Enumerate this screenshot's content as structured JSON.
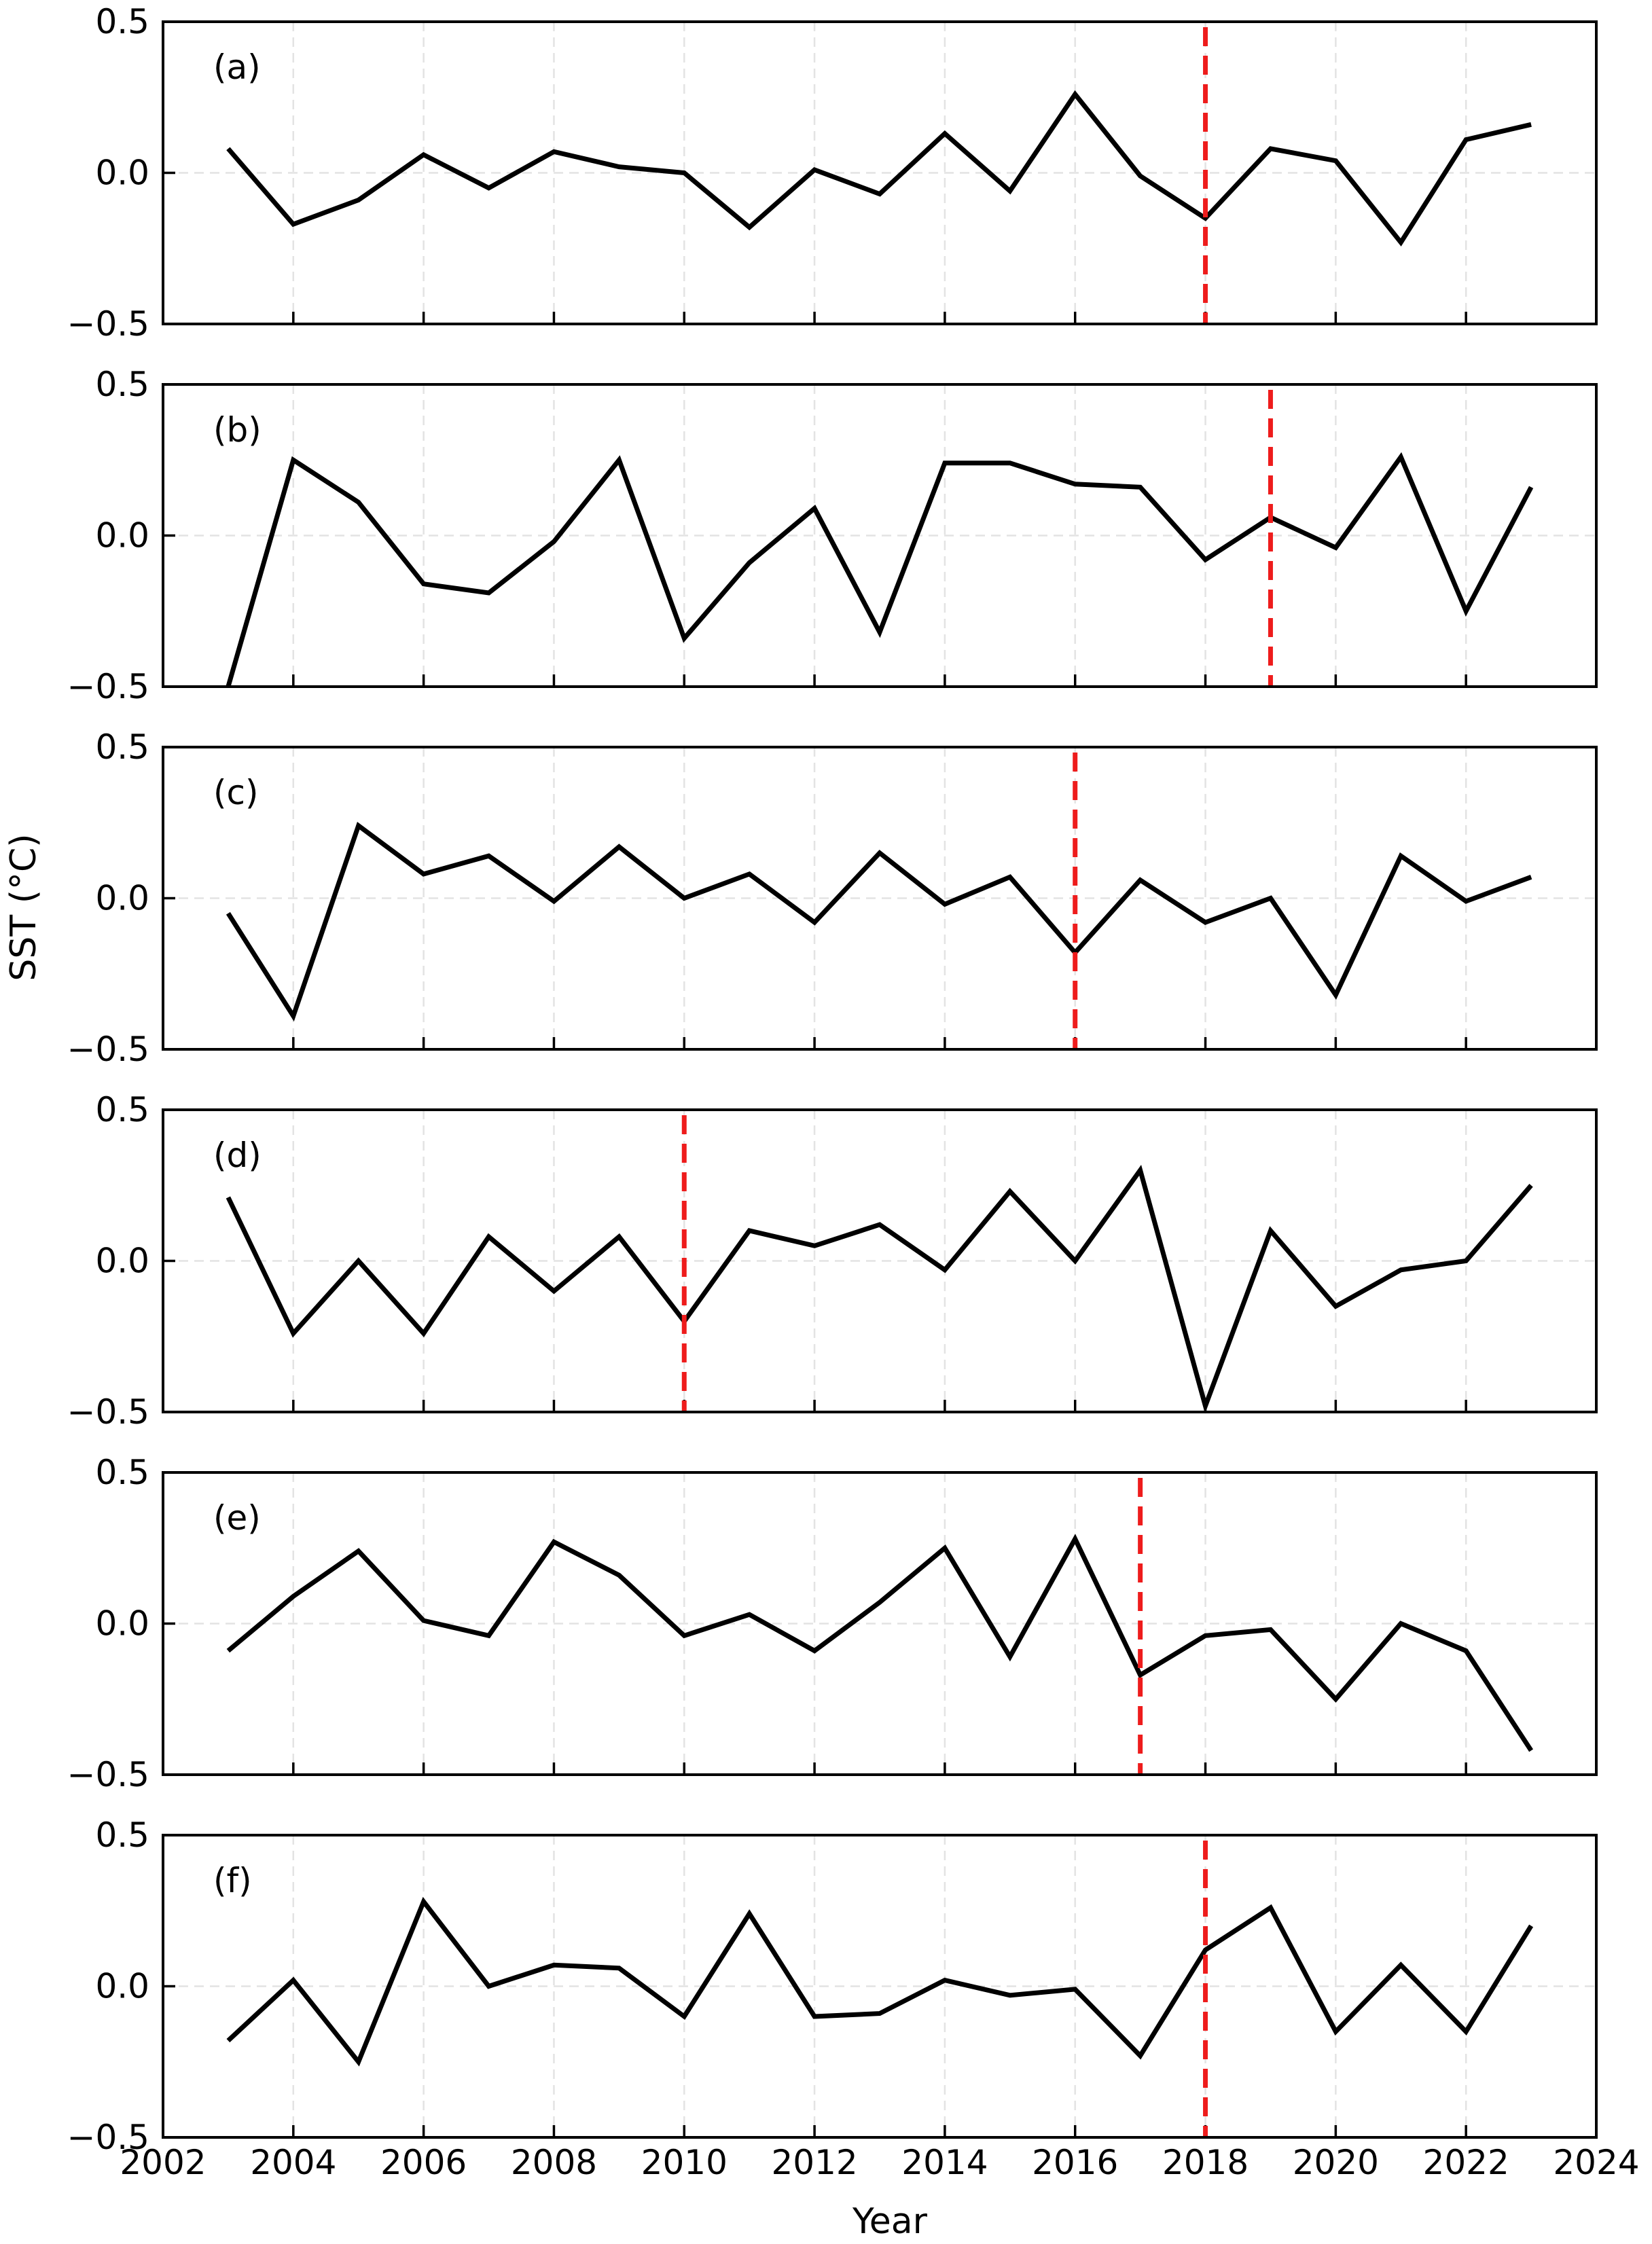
{
  "figure": {
    "ylabel": "SST (°C)",
    "xlabel": "Year"
  },
  "chart_data": [
    {
      "type": "line",
      "panel_label": "(a)",
      "x": [
        2003,
        2004,
        2005,
        2006,
        2007,
        2008,
        2009,
        2010,
        2011,
        2012,
        2013,
        2014,
        2015,
        2016,
        2017,
        2018,
        2019,
        2020,
        2021,
        2022,
        2023
      ],
      "values": [
        0.08,
        -0.17,
        -0.09,
        0.06,
        -0.05,
        0.07,
        0.02,
        0.0,
        -0.18,
        0.01,
        -0.07,
        0.13,
        -0.06,
        0.26,
        -0.01,
        -0.15,
        0.08,
        0.04,
        -0.23,
        0.11,
        0.16
      ],
      "breakpoint": 2018,
      "xlim": [
        2002,
        2024
      ],
      "ylim": [
        -0.5,
        0.5
      ],
      "yticks": [
        "0.5",
        "0.0",
        "−0.5"
      ],
      "grid": true
    },
    {
      "type": "line",
      "panel_label": "(b)",
      "x": [
        2003,
        2004,
        2005,
        2006,
        2007,
        2008,
        2009,
        2010,
        2011,
        2012,
        2013,
        2014,
        2015,
        2016,
        2017,
        2018,
        2019,
        2020,
        2021,
        2022,
        2023
      ],
      "values": [
        -0.5,
        0.25,
        0.11,
        -0.16,
        -0.19,
        -0.02,
        0.25,
        -0.34,
        -0.09,
        0.09,
        -0.32,
        0.24,
        0.24,
        0.17,
        0.16,
        -0.08,
        0.06,
        -0.04,
        0.26,
        -0.25,
        0.16
      ],
      "breakpoint": 2019,
      "xlim": [
        2002,
        2024
      ],
      "ylim": [
        -0.5,
        0.5
      ],
      "yticks": [
        "0.5",
        "0.0",
        "−0.5"
      ],
      "grid": true
    },
    {
      "type": "line",
      "panel_label": "(c)",
      "x": [
        2003,
        2004,
        2005,
        2006,
        2007,
        2008,
        2009,
        2010,
        2011,
        2012,
        2013,
        2014,
        2015,
        2016,
        2017,
        2018,
        2019,
        2020,
        2021,
        2022,
        2023
      ],
      "values": [
        -0.05,
        -0.39,
        0.24,
        0.08,
        0.14,
        -0.01,
        0.17,
        0.0,
        0.08,
        -0.08,
        0.15,
        -0.02,
        0.07,
        -0.18,
        0.06,
        -0.08,
        0.0,
        -0.32,
        0.14,
        -0.01,
        0.07
      ],
      "breakpoint": 2016,
      "xlim": [
        2002,
        2024
      ],
      "ylim": [
        -0.5,
        0.5
      ],
      "yticks": [
        "0.5",
        "0.0",
        "−0.5"
      ],
      "grid": true
    },
    {
      "type": "line",
      "panel_label": "(d)",
      "x": [
        2003,
        2004,
        2005,
        2006,
        2007,
        2008,
        2009,
        2010,
        2011,
        2012,
        2013,
        2014,
        2015,
        2016,
        2017,
        2018,
        2019,
        2020,
        2021,
        2022,
        2023
      ],
      "values": [
        0.21,
        -0.24,
        0.0,
        -0.24,
        0.08,
        -0.1,
        0.08,
        -0.2,
        0.1,
        0.05,
        0.12,
        -0.03,
        0.23,
        0.0,
        0.3,
        -0.48,
        0.1,
        -0.15,
        -0.03,
        0.0,
        0.25
      ],
      "breakpoint": 2010,
      "xlim": [
        2002,
        2024
      ],
      "ylim": [
        -0.5,
        0.5
      ],
      "yticks": [
        "0.5",
        "0.0",
        "−0.5"
      ],
      "grid": true
    },
    {
      "type": "line",
      "panel_label": "(e)",
      "x": [
        2003,
        2004,
        2005,
        2006,
        2007,
        2008,
        2009,
        2010,
        2011,
        2012,
        2013,
        2014,
        2015,
        2016,
        2017,
        2018,
        2019,
        2020,
        2021,
        2022,
        2023
      ],
      "values": [
        -0.09,
        0.09,
        0.24,
        0.01,
        -0.04,
        0.27,
        0.16,
        -0.04,
        0.03,
        -0.09,
        0.07,
        0.25,
        -0.11,
        0.28,
        -0.17,
        -0.04,
        -0.02,
        -0.25,
        0.0,
        -0.09,
        -0.42
      ],
      "breakpoint": 2017,
      "xlim": [
        2002,
        2024
      ],
      "ylim": [
        -0.5,
        0.5
      ],
      "yticks": [
        "0.5",
        "0.0",
        "−0.5"
      ],
      "grid": true
    },
    {
      "type": "line",
      "panel_label": "(f)",
      "x": [
        2003,
        2004,
        2005,
        2006,
        2007,
        2008,
        2009,
        2010,
        2011,
        2012,
        2013,
        2014,
        2015,
        2016,
        2017,
        2018,
        2019,
        2020,
        2021,
        2022,
        2023
      ],
      "values": [
        -0.18,
        0.02,
        -0.25,
        0.28,
        0.0,
        0.07,
        0.06,
        -0.1,
        0.24,
        -0.1,
        -0.09,
        0.02,
        -0.03,
        -0.01,
        -0.23,
        0.12,
        0.26,
        -0.15,
        0.07,
        -0.15,
        0.2
      ],
      "breakpoint": 2018,
      "xlim": [
        2002,
        2024
      ],
      "ylim": [
        -0.5,
        0.5
      ],
      "yticks": [
        "0.5",
        "0.0",
        "−0.5"
      ],
      "grid": true,
      "xticks": [
        "2002",
        "2004",
        "2006",
        "2008",
        "2010",
        "2012",
        "2014",
        "2016",
        "2018",
        "2020",
        "2022",
        "2024"
      ]
    }
  ],
  "colors": {
    "line": "#000000",
    "breakpoint": "#ee1c1c",
    "grid": "#e3e3e3",
    "axes": "#000000"
  }
}
